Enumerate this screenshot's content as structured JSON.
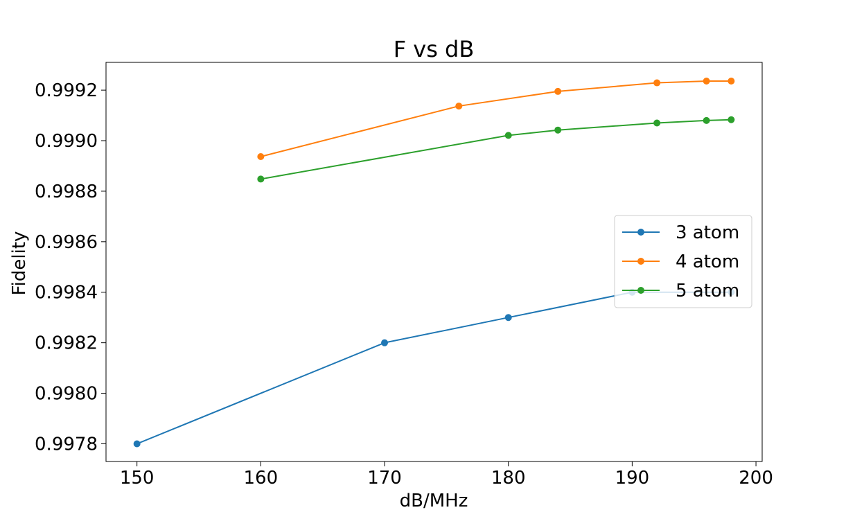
{
  "chart_data": {
    "type": "line",
    "title": "F vs dB",
    "xlabel": "dB/MHz",
    "ylabel": "Fidelity",
    "xlim": [
      147.5,
      200.5
    ],
    "ylim": [
      0.99773,
      0.99931
    ],
    "xticks": [
      150,
      160,
      170,
      180,
      190,
      200
    ],
    "xtick_labels": [
      "150",
      "160",
      "170",
      "180",
      "190",
      "200"
    ],
    "yticks": [
      0.9978,
      0.998,
      0.9982,
      0.9984,
      0.9986,
      0.9988,
      0.999,
      0.9992
    ],
    "ytick_labels": [
      "0.9978",
      "0.9980",
      "0.9982",
      "0.9984",
      "0.9986",
      "0.9988",
      "0.9990",
      "0.9992"
    ],
    "grid": false,
    "legend_position": "center-right",
    "series": [
      {
        "name": "3 atom",
        "color": "#1f77b4",
        "x": [
          150,
          170,
          180,
          190,
          198
        ],
        "y": [
          0.9978,
          0.9982,
          0.9983,
          0.9984,
          0.9984
        ]
      },
      {
        "name": "4 atom",
        "color": "#ff7f0e",
        "x": [
          160,
          176,
          184,
          192,
          196,
          198
        ],
        "y": [
          0.998937,
          0.999137,
          0.999195,
          0.999229,
          0.999236,
          0.999236
        ]
      },
      {
        "name": "5 atom",
        "color": "#2ca02c",
        "x": [
          160,
          180,
          184,
          192,
          196,
          198
        ],
        "y": [
          0.998848,
          0.999021,
          0.999042,
          0.99907,
          0.99908,
          0.999083
        ]
      }
    ]
  }
}
